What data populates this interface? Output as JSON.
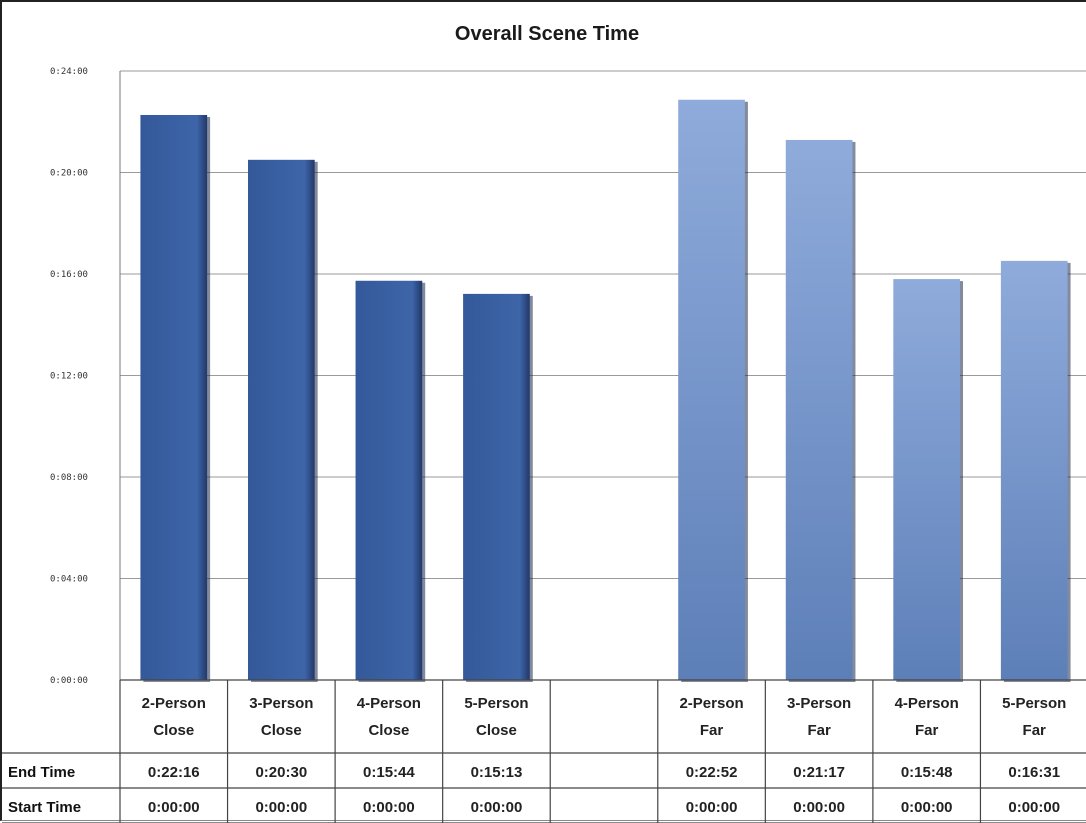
{
  "chart_data": {
    "type": "bar",
    "title": "Overall Scene Time",
    "y_ticks": [
      "0:00:00",
      "0:04:00",
      "0:08:00",
      "0:12:00",
      "0:16:00",
      "0:20:00",
      "0:24:00"
    ],
    "ylim": [
      "0:00:00",
      "0:24:00"
    ],
    "categories": [
      "2-Person Close",
      "3-Person Close",
      "4-Person Close",
      "5-Person Close",
      "",
      "2-Person Far",
      "3-Person Far",
      "4-Person Far",
      "5-Person Far"
    ],
    "category_lines": [
      [
        "2-Person",
        "Close"
      ],
      [
        "3-Person",
        "Close"
      ],
      [
        "4-Person",
        "Close"
      ],
      [
        "5-Person",
        "Close"
      ],
      [
        "",
        ""
      ],
      [
        "2-Person",
        "Far"
      ],
      [
        "3-Person",
        "Far"
      ],
      [
        "4-Person",
        "Far"
      ],
      [
        "5-Person",
        "Far"
      ]
    ],
    "series": [
      {
        "name": "End Time",
        "values": [
          "0:22:16",
          "0:20:30",
          "0:15:44",
          "0:15:13",
          "",
          "0:22:52",
          "0:21:17",
          "0:15:48",
          "0:16:31"
        ]
      },
      {
        "name": "Start Time",
        "values": [
          "0:00:00",
          "0:00:00",
          "0:00:00",
          "0:00:00",
          "",
          "0:00:00",
          "0:00:00",
          "0:00:00",
          "0:00:00"
        ]
      }
    ],
    "colors": {
      "close": "#3b62a3",
      "far_top": "#8fabdb",
      "far_bottom": "#5d7fb8",
      "grid": "#9a9a9a"
    },
    "grid": true,
    "legend": "data-table"
  }
}
